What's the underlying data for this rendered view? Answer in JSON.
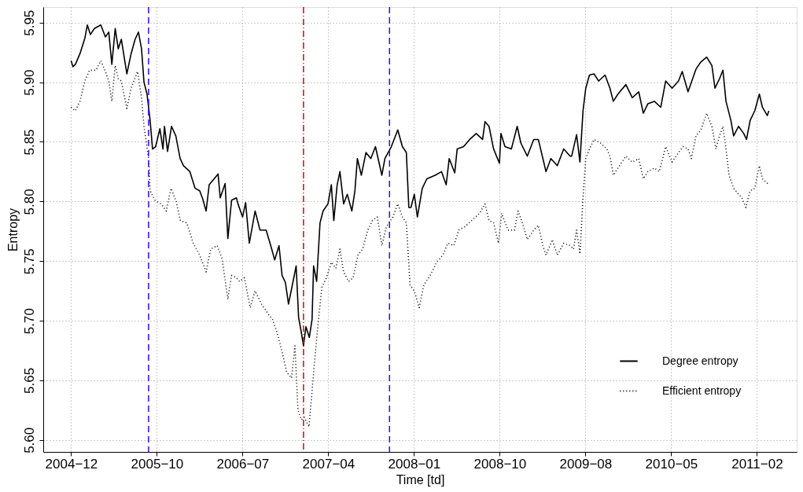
{
  "chart_data": {
    "type": "line",
    "xlabel": "Time [td]",
    "ylabel": "Entropy",
    "xlim": [
      "2004-09-25",
      "2011-06-22"
    ],
    "ylim": [
      5.59,
      5.963
    ],
    "xticks": [
      {
        "value": "2004-12-25",
        "label": "2004−12"
      },
      {
        "value": "2005-10-01",
        "label": "2005−10"
      },
      {
        "value": "2006-07-08",
        "label": "2006−07"
      },
      {
        "value": "2007-04-14",
        "label": "2007−04"
      },
      {
        "value": "2008-01-19",
        "label": "2008−01"
      },
      {
        "value": "2008-10-25",
        "label": "2008−10"
      },
      {
        "value": "2009-08-01",
        "label": "2009−08"
      },
      {
        "value": "2010-05-08",
        "label": "2010−05"
      },
      {
        "value": "2011-02-12",
        "label": "2011−02"
      }
    ],
    "yticks": [
      {
        "value": 5.6,
        "label": "5.60"
      },
      5.65,
      {
        "value": 5.7,
        "label": "5.70"
      },
      5.75,
      {
        "value": 5.8,
        "label": "5.80"
      },
      5.85,
      {
        "value": 5.9,
        "label": "5.90"
      },
      5.95
    ],
    "grid": true,
    "legend": "bottom right",
    "marker": "none",
    "ref_lines": [
      {
        "axis": "x",
        "value": "2005-09-04",
        "color": "#3a00ff",
        "line_style": "dashed"
      },
      {
        "axis": "x",
        "value": "2007-01-23",
        "color": "#e00000",
        "line_style": "dashdot"
      },
      {
        "axis": "x",
        "value": "2007-10-31",
        "color": "#3a00ff",
        "line_style": "dashed"
      }
    ],
    "series": [
      {
        "name": "Degree entropy",
        "color": "#000000",
        "line_style": "solid",
        "x": [
          "2004-12-25",
          "2004-12-31",
          "2005-01-08",
          "2005-01-23",
          "2005-02-08",
          "2005-02-16",
          "2005-02-26",
          "2005-03-11",
          "2005-04-01",
          "2005-04-16",
          "2005-04-27",
          "2005-05-07",
          "2005-05-18",
          "2005-05-28",
          "2005-06-07",
          "2005-06-25",
          "2005-07-09",
          "2005-07-22",
          "2005-08-02",
          "2005-08-12",
          "2005-08-20",
          "2005-08-30",
          "2005-09-09",
          "2005-09-17",
          "2005-09-27",
          "2005-10-11",
          "2005-10-21",
          "2005-10-26",
          "2005-11-05",
          "2005-11-18",
          "2005-12-02",
          "2005-12-16",
          "2005-12-27",
          "2006-01-17",
          "2006-02-03",
          "2006-02-18",
          "2006-02-28",
          "2006-03-11",
          "2006-03-21",
          "2006-04-19",
          "2006-04-26",
          "2006-05-12",
          "2006-05-21",
          "2006-06-02",
          "2006-06-18",
          "2006-06-23",
          "2006-07-08",
          "2006-07-18",
          "2006-07-30",
          "2006-08-18",
          "2006-09-03",
          "2006-09-23",
          "2006-10-08",
          "2006-10-21",
          "2006-11-04",
          "2006-11-14",
          "2006-11-25",
          "2006-12-05",
          "2006-12-20",
          "2006-12-30",
          "2007-01-07",
          "2007-01-16",
          "2007-01-23",
          "2007-01-31",
          "2007-02-11",
          "2007-02-20",
          "2007-02-25",
          "2007-03-07",
          "2007-03-18",
          "2007-03-28",
          "2007-04-13",
          "2007-04-24",
          "2007-05-02",
          "2007-05-13",
          "2007-05-22",
          "2007-06-03",
          "2007-06-15",
          "2007-06-30",
          "2007-07-10",
          "2007-07-18",
          "2007-07-31",
          "2007-08-15",
          "2007-08-31",
          "2007-09-15",
          "2007-10-06",
          "2007-10-16",
          "2007-11-06",
          "2007-11-27",
          "2007-12-12",
          "2007-12-25",
          "2008-01-02",
          "2008-01-09",
          "2008-01-20",
          "2008-01-30",
          "2008-02-15",
          "2008-03-01",
          "2008-03-28",
          "2008-04-18",
          "2008-05-03",
          "2008-05-13",
          "2008-05-31",
          "2008-06-08",
          "2008-06-29",
          "2008-07-19",
          "2008-08-09",
          "2008-08-30",
          "2008-09-07",
          "2008-09-20",
          "2008-10-05",
          "2008-10-24",
          "2008-10-29",
          "2008-11-11",
          "2008-12-02",
          "2008-12-21",
          "2009-01-02",
          "2009-01-23",
          "2009-02-13",
          "2009-02-28",
          "2009-03-15",
          "2009-03-25",
          "2009-04-10",
          "2009-05-01",
          "2009-05-22",
          "2009-06-12",
          "2009-06-17",
          "2009-07-03",
          "2009-07-14",
          "2009-07-24",
          "2009-08-02",
          "2009-08-14",
          "2009-08-29",
          "2009-09-13",
          "2009-10-04",
          "2009-10-20",
          "2009-10-31",
          "2009-11-15",
          "2009-12-11",
          "2010-01-01",
          "2010-01-22",
          "2010-02-06",
          "2010-02-21",
          "2010-03-14",
          "2010-04-04",
          "2010-04-20",
          "2010-05-11",
          "2010-06-01",
          "2010-06-13",
          "2010-07-02",
          "2010-07-28",
          "2010-08-13",
          "2010-09-01",
          "2010-09-18",
          "2010-09-28",
          "2010-10-13",
          "2010-10-24",
          "2010-11-03",
          "2010-11-19",
          "2010-11-28",
          "2010-12-14",
          "2010-12-31",
          "2011-01-09",
          "2011-01-21",
          "2011-02-05",
          "2011-02-20",
          "2011-03-02",
          "2011-03-18",
          "2011-03-23"
        ],
        "values": [
          5.918,
          5.913,
          5.915,
          5.924,
          5.937,
          5.948,
          5.94,
          5.945,
          5.948,
          5.938,
          5.942,
          5.915,
          5.945,
          5.928,
          5.936,
          5.907,
          5.924,
          5.936,
          5.942,
          5.928,
          5.9,
          5.89,
          5.868,
          5.844,
          5.846,
          5.861,
          5.844,
          5.863,
          5.842,
          5.863,
          5.855,
          5.836,
          5.83,
          5.825,
          5.811,
          5.809,
          5.802,
          5.792,
          5.814,
          5.823,
          5.803,
          5.815,
          5.769,
          5.801,
          5.803,
          5.798,
          5.787,
          5.799,
          5.765,
          5.792,
          5.776,
          5.776,
          5.763,
          5.751,
          5.763,
          5.738,
          5.732,
          5.714,
          5.733,
          5.746,
          5.703,
          5.69,
          5.679,
          5.695,
          5.686,
          5.701,
          5.746,
          5.733,
          5.782,
          5.792,
          5.798,
          5.814,
          5.784,
          5.814,
          5.825,
          5.798,
          5.806,
          5.792,
          5.809,
          5.836,
          5.822,
          5.841,
          5.836,
          5.846,
          5.822,
          5.836,
          5.846,
          5.86,
          5.846,
          5.841,
          5.795,
          5.795,
          5.806,
          5.787,
          5.811,
          5.819,
          5.822,
          5.825,
          5.814,
          5.836,
          5.824,
          5.844,
          5.846,
          5.852,
          5.857,
          5.852,
          5.867,
          5.863,
          5.844,
          5.832,
          5.857,
          5.846,
          5.844,
          5.863,
          5.849,
          5.838,
          5.852,
          5.852,
          5.836,
          5.825,
          5.836,
          5.83,
          5.844,
          5.838,
          5.838,
          5.856,
          5.833,
          5.876,
          5.895,
          5.906,
          5.907,
          5.901,
          5.906,
          5.895,
          5.884,
          5.89,
          5.898,
          5.887,
          5.892,
          5.874,
          5.882,
          5.884,
          5.879,
          5.901,
          5.895,
          5.901,
          5.909,
          5.892,
          5.911,
          5.917,
          5.921,
          5.914,
          5.895,
          5.903,
          5.91,
          5.884,
          5.868,
          5.855,
          5.863,
          5.857,
          5.852,
          5.868,
          5.876,
          5.89,
          5.879,
          5.872,
          5.876
        ]
      },
      {
        "name": "Efficient entropy",
        "color": "#000000",
        "line_style": "dotted",
        "x": [
          "2004-12-25",
          "2005-01-08",
          "2005-01-23",
          "2005-02-08",
          "2005-02-23",
          "2005-03-16",
          "2005-04-01",
          "2005-04-16",
          "2005-04-27",
          "2005-05-07",
          "2005-05-18",
          "2005-05-28",
          "2005-06-07",
          "2005-06-25",
          "2005-07-09",
          "2005-07-30",
          "2005-08-12",
          "2005-08-20",
          "2005-09-04",
          "2005-09-09",
          "2005-09-25",
          "2005-10-15",
          "2005-11-01",
          "2005-11-16",
          "2005-12-02",
          "2005-12-17",
          "2006-01-07",
          "2006-01-28",
          "2006-02-18",
          "2006-03-11",
          "2006-03-26",
          "2006-04-16",
          "2006-05-02",
          "2006-05-21",
          "2006-06-02",
          "2006-06-18",
          "2006-06-28",
          "2006-07-14",
          "2006-08-02",
          "2006-08-18",
          "2006-09-08",
          "2006-09-29",
          "2006-10-14",
          "2006-10-29",
          "2006-11-14",
          "2006-11-29",
          "2006-12-15",
          "2006-12-26",
          "2007-01-05",
          "2007-01-16",
          "2007-01-26",
          "2007-02-10",
          "2007-02-20",
          "2007-03-03",
          "2007-03-13",
          "2007-03-24",
          "2007-04-08",
          "2007-04-24",
          "2007-05-09",
          "2007-05-22",
          "2007-06-03",
          "2007-06-19",
          "2007-07-04",
          "2007-07-20",
          "2007-08-04",
          "2007-08-21",
          "2007-09-05",
          "2007-09-21",
          "2007-10-06",
          "2007-10-21",
          "2007-11-11",
          "2007-11-27",
          "2007-12-12",
          "2007-12-25",
          "2007-12-30",
          "2008-01-06",
          "2008-01-20",
          "2008-02-05",
          "2008-02-20",
          "2008-03-12",
          "2008-04-02",
          "2008-04-22",
          "2008-05-09",
          "2008-05-28",
          "2008-06-13",
          "2008-07-04",
          "2008-07-25",
          "2008-08-20",
          "2008-09-07",
          "2008-09-20",
          "2008-10-05",
          "2008-10-21",
          "2008-10-31",
          "2008-11-21",
          "2008-12-12",
          "2008-12-24",
          "2009-01-07",
          "2009-01-23",
          "2009-02-13",
          "2009-02-28",
          "2009-03-15",
          "2009-03-25",
          "2009-04-15",
          "2009-05-01",
          "2009-05-22",
          "2009-06-12",
          "2009-06-23",
          "2009-07-03",
          "2009-07-14",
          "2009-07-24",
          "2009-08-02",
          "2009-08-14",
          "2009-08-29",
          "2009-09-19",
          "2009-10-10",
          "2009-10-20",
          "2009-10-31",
          "2009-11-15",
          "2009-12-11",
          "2010-01-01",
          "2010-01-22",
          "2010-02-06",
          "2010-02-21",
          "2010-03-14",
          "2010-03-30",
          "2010-04-20",
          "2010-05-11",
          "2010-06-01",
          "2010-06-16",
          "2010-07-02",
          "2010-07-13",
          "2010-07-28",
          "2010-08-13",
          "2010-09-01",
          "2010-09-18",
          "2010-10-01",
          "2010-10-13",
          "2010-10-24",
          "2010-11-03",
          "2010-11-13",
          "2010-11-28",
          "2010-12-14",
          "2010-12-25",
          "2011-01-07",
          "2011-01-21",
          "2011-02-05",
          "2011-02-20",
          "2011-03-02",
          "2011-03-23"
        ],
        "values": [
          5.879,
          5.876,
          5.884,
          5.901,
          5.91,
          5.91,
          5.918,
          5.909,
          5.901,
          5.884,
          5.914,
          5.903,
          5.901,
          5.878,
          5.895,
          5.909,
          5.887,
          5.863,
          5.836,
          5.809,
          5.801,
          5.798,
          5.792,
          5.811,
          5.801,
          5.784,
          5.782,
          5.765,
          5.755,
          5.741,
          5.76,
          5.763,
          5.752,
          5.718,
          5.738,
          5.736,
          5.733,
          5.736,
          5.711,
          5.725,
          5.714,
          5.706,
          5.701,
          5.69,
          5.674,
          5.657,
          5.652,
          5.679,
          5.625,
          5.617,
          5.619,
          5.611,
          5.641,
          5.674,
          5.701,
          5.728,
          5.736,
          5.749,
          5.744,
          5.76,
          5.741,
          5.733,
          5.736,
          5.755,
          5.76,
          5.776,
          5.784,
          5.787,
          5.763,
          5.779,
          5.787,
          5.798,
          5.787,
          5.782,
          5.76,
          5.73,
          5.725,
          5.711,
          5.73,
          5.738,
          5.749,
          5.755,
          5.765,
          5.763,
          5.776,
          5.779,
          5.784,
          5.79,
          5.798,
          5.784,
          5.782,
          5.765,
          5.79,
          5.776,
          5.776,
          5.792,
          5.782,
          5.768,
          5.776,
          5.78,
          5.763,
          5.755,
          5.768,
          5.755,
          5.765,
          5.763,
          5.76,
          5.776,
          5.756,
          5.803,
          5.836,
          5.844,
          5.852,
          5.849,
          5.844,
          5.838,
          5.822,
          5.828,
          5.838,
          5.833,
          5.836,
          5.819,
          5.825,
          5.828,
          5.825,
          5.846,
          5.833,
          5.841,
          5.846,
          5.844,
          5.836,
          5.855,
          5.86,
          5.874,
          5.863,
          5.844,
          5.855,
          5.863,
          5.844,
          5.822,
          5.811,
          5.806,
          5.803,
          5.795,
          5.809,
          5.811,
          5.83,
          5.819,
          5.814
        ]
      }
    ]
  }
}
